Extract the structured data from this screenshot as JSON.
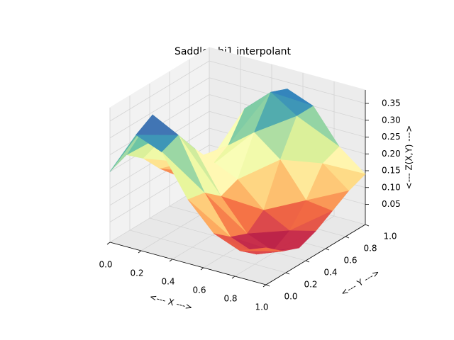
{
  "chart_data": {
    "type": "surface",
    "title": "Saddle phi1 interpolant",
    "xlabel": "<--- X --->",
    "ylabel": "<--- Y --->",
    "zlabel": "<--- Z(X,Y) --->",
    "x": [
      0,
      0.167,
      0.333,
      0.5,
      0.667,
      0.833,
      1
    ],
    "y": [
      0,
      0.167,
      0.333,
      0.5,
      0.667,
      0.833,
      1
    ],
    "z": [
      [
        0.2,
        0.33,
        0.3,
        0.18,
        0.1,
        0.07,
        0.1
      ],
      [
        0.22,
        0.36,
        0.32,
        0.17,
        0.06,
        0.03,
        0.06
      ],
      [
        0.18,
        0.28,
        0.25,
        0.13,
        0.04,
        0.01,
        0.04
      ],
      [
        0.12,
        0.16,
        0.17,
        0.15,
        0.08,
        0.04,
        0.06
      ],
      [
        0.07,
        0.1,
        0.2,
        0.26,
        0.2,
        0.1,
        0.09
      ],
      [
        0.05,
        0.12,
        0.28,
        0.35,
        0.3,
        0.18,
        0.12
      ],
      [
        0.04,
        0.1,
        0.25,
        0.33,
        0.3,
        0.2,
        0.14
      ]
    ],
    "xlim": [
      0,
      1
    ],
    "ylim": [
      0,
      1
    ],
    "zlim": [
      -0.01,
      0.39
    ],
    "xticks": [
      {
        "value": 0,
        "label": "0.0"
      },
      0.2,
      0.4,
      0.6,
      0.8,
      {
        "value": 1,
        "label": "1.0"
      }
    ],
    "yticks": [
      {
        "value": 0,
        "label": "0.0"
      },
      0.2,
      0.4,
      0.6,
      0.8,
      {
        "value": 1,
        "label": "1.0"
      }
    ],
    "zticks": [
      0.05,
      {
        "value": 0.1,
        "label": "0.10"
      },
      0.15,
      {
        "value": 0.2,
        "label": "0.20"
      },
      0.25,
      {
        "value": 0.3,
        "label": "0.30"
      },
      0.35
    ],
    "grid": true
  }
}
